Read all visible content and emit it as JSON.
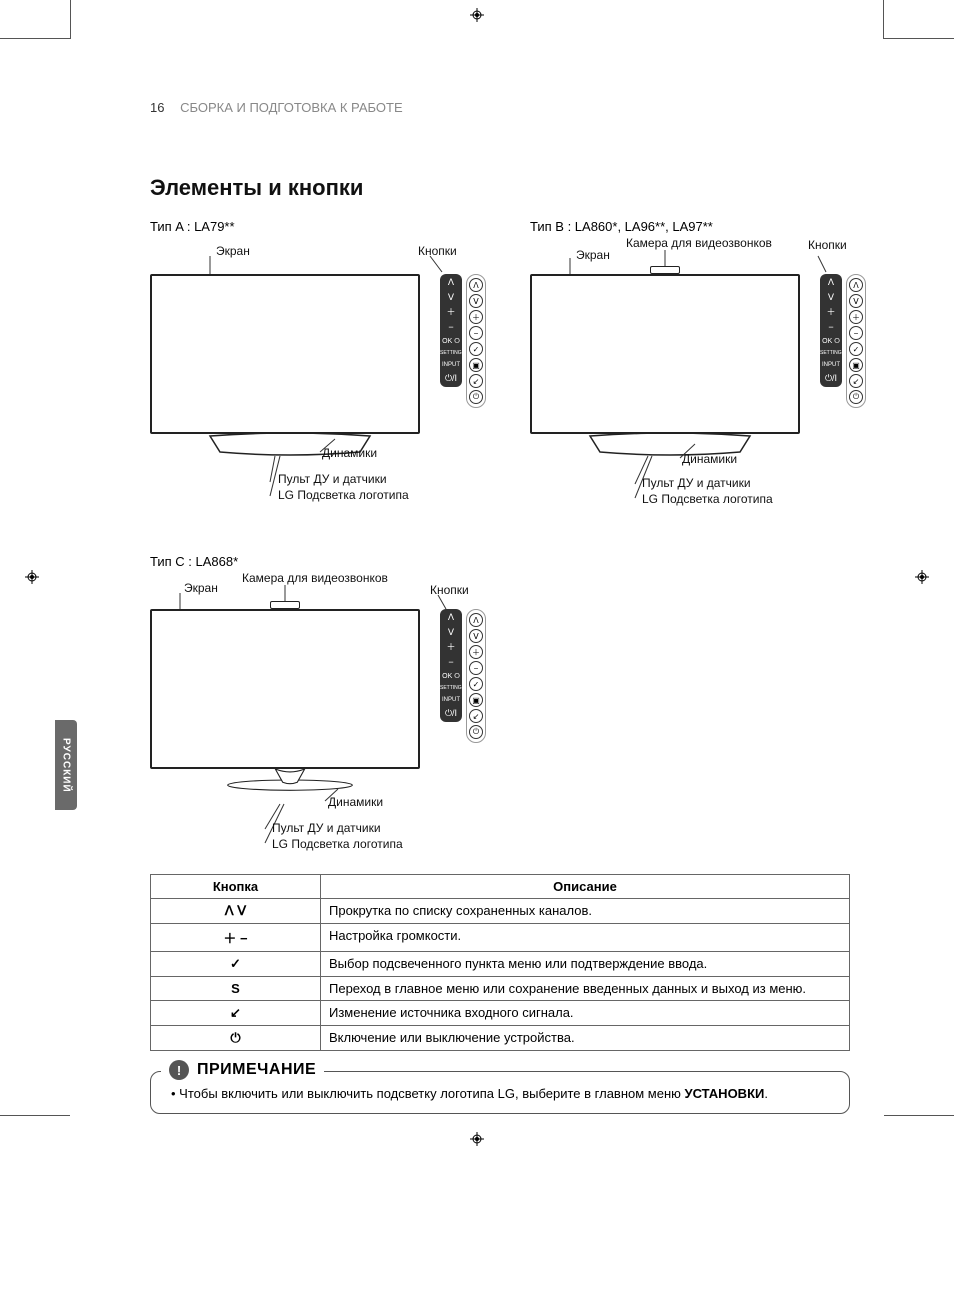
{
  "page_number": "16",
  "breadcrumb": "СБОРКА И ПОДГОТОВКА К РАБОТЕ",
  "section_title": "Элементы и кнопки",
  "language_tab": "РУССКИЙ",
  "types": {
    "a": {
      "label": "Тип A : LA79**",
      "has_camera": false
    },
    "b": {
      "label": "Тип B : LA860*, LA96**, LA97**",
      "has_camera": true
    },
    "c": {
      "label": "Тип C : LA868*",
      "has_camera": true
    }
  },
  "callouts": {
    "screen": "Экран",
    "buttons": "Кнопки",
    "camera": "Камера для видеозвонков",
    "speakers": "Динамики",
    "remote": "Пульт ДУ и датчики",
    "logo": "LG Подсветка логотипа"
  },
  "button_strip": {
    "up": "ᐱ",
    "down": "ᐯ",
    "plus": "＋",
    "minus": "−",
    "ok": "OK ⭘",
    "settings": "SETTINGS",
    "input": "INPUT",
    "power": "⏻/I"
  },
  "table": {
    "header": {
      "button": "Кнопка",
      "desc": "Описание"
    },
    "rows": [
      {
        "key": "ᐱ ᐯ",
        "desc": "Прокрутка по списку сохраненных каналов."
      },
      {
        "key": "＋ −",
        "desc": "Настройка громкости."
      },
      {
        "key": "✓",
        "desc": "Выбор подсвеченного пункта меню или подтверждение ввода."
      },
      {
        "key": "S",
        "desc": "Переход в главное меню или сохранение введенных данных и выход из меню."
      },
      {
        "key": "↙",
        "desc": "Изменение источника входного сигнала."
      },
      {
        "key": "⏻",
        "desc": "Включение или выключение устройства."
      }
    ]
  },
  "note": {
    "title": "ПРИМЕЧАНИЕ",
    "text_prefix": "Чтобы включить или выключить подсветку логотипа LG, выберите в главном меню ",
    "text_bold": "УСТАНОВКИ",
    "text_suffix": "."
  },
  "colors": {
    "text": "#111111",
    "muted": "#888888",
    "border": "#555555",
    "tab_bg": "#6a6a6a",
    "strip_bg": "#333333"
  }
}
